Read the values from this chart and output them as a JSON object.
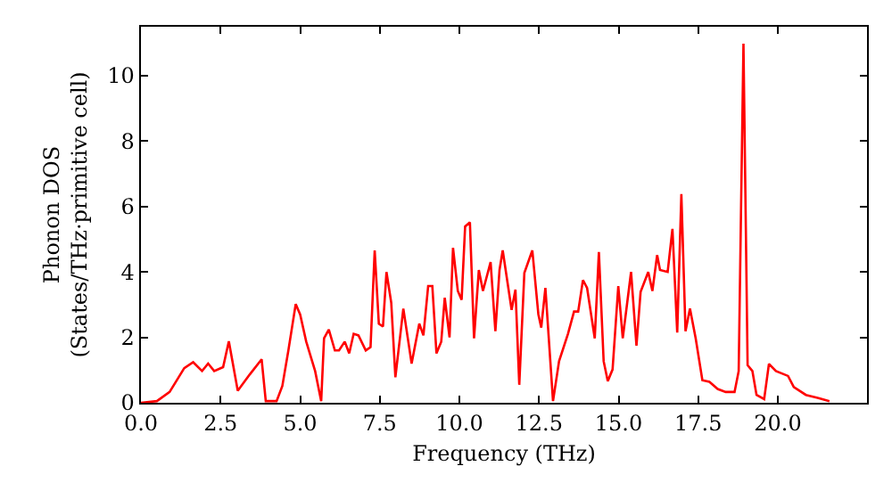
{
  "chart_data": {
    "type": "line",
    "xlabel": "Frequency (THz)",
    "ylabel": "Phonon DOS\n(States/THz·primitive cell)",
    "xlim": [
      0,
      22.8
    ],
    "ylim": [
      0,
      11.5
    ],
    "xticks": [
      {
        "value": 0,
        "label": "0.0"
      },
      {
        "value": 2.5,
        "label": "2.5"
      },
      {
        "value": 5,
        "label": "5.0"
      },
      {
        "value": 7.5,
        "label": "7.5"
      },
      {
        "value": 10,
        "label": "10.0"
      },
      {
        "value": 12.5,
        "label": "12.5"
      },
      {
        "value": 15,
        "label": "15.0"
      },
      {
        "value": 17.5,
        "label": "17.5"
      },
      {
        "value": 20,
        "label": "20.0"
      }
    ],
    "yticks": [
      0,
      2,
      4,
      6,
      8,
      10
    ],
    "grid": false,
    "marker": "none",
    "line_style": "solid",
    "series": [
      {
        "color": "#ff0000",
        "x": [
          0,
          0.5,
          0.9,
          1.36,
          1.64,
          1.92,
          2.11,
          2.3,
          2.58,
          2.76,
          3.04,
          3.42,
          3.79,
          3.92,
          4.26,
          4.44,
          4.63,
          4.86,
          5.0,
          5.19,
          5.47,
          5.66,
          5.75,
          5.9,
          6.09,
          6.22,
          6.4,
          6.54,
          6.68,
          6.83,
          7.06,
          7.21,
          7.34,
          7.47,
          7.6,
          7.71,
          7.86,
          7.99,
          8.24,
          8.5,
          8.74,
          8.87,
          9.02,
          9.15,
          9.28,
          9.43,
          9.54,
          9.69,
          9.8,
          9.95,
          10.07,
          10.18,
          10.33,
          10.46,
          10.61,
          10.74,
          10.98,
          11.13,
          11.26,
          11.36,
          11.64,
          11.76,
          11.88,
          12.04,
          12.29,
          12.48,
          12.57,
          12.7,
          12.94,
          13.13,
          13.41,
          13.6,
          13.73,
          13.88,
          14.01,
          14.25,
          14.38,
          14.53,
          14.66,
          14.81,
          14.99,
          15.13,
          15.39,
          15.56,
          15.69,
          15.93,
          16.06,
          16.21,
          16.3,
          16.54,
          16.69,
          16.84,
          16.97,
          17.1,
          17.24,
          17.42,
          17.63,
          17.85,
          18.11,
          18.36,
          18.64,
          18.77,
          18.92,
          19.05,
          19.2,
          19.33,
          19.57,
          19.72,
          19.94,
          20.32,
          20.5,
          20.88,
          21.25,
          21.62
        ],
        "values": [
          0,
          0.05,
          0.33,
          1.06,
          1.24,
          0.97,
          1.2,
          0.97,
          1.09,
          1.88,
          0.37,
          0.87,
          1.33,
          0.05,
          0.05,
          0.51,
          1.6,
          3.02,
          2.7,
          1.87,
          0.97,
          0.05,
          1.97,
          2.24,
          1.6,
          1.6,
          1.87,
          1.51,
          2.11,
          2.06,
          1.6,
          1.7,
          4.66,
          2.42,
          2.33,
          4.0,
          3.06,
          0.78,
          2.88,
          1.2,
          2.42,
          2.06,
          3.57,
          3.57,
          1.51,
          1.87,
          3.21,
          2.0,
          4.74,
          3.42,
          3.15,
          5.39,
          5.52,
          1.97,
          4.06,
          3.42,
          4.3,
          2.19,
          4.06,
          4.66,
          2.84,
          3.46,
          0.55,
          3.97,
          4.66,
          2.7,
          2.3,
          3.51,
          0.05,
          1.27,
          2.11,
          2.79,
          2.79,
          3.75,
          3.51,
          1.97,
          4.61,
          1.27,
          0.66,
          1.02,
          3.57,
          1.97,
          4.0,
          1.75,
          3.39,
          4.0,
          3.42,
          4.52,
          4.06,
          4.0,
          5.32,
          2.15,
          6.38,
          2.19,
          2.88,
          1.97,
          0.69,
          0.64,
          0.42,
          0.33,
          0.33,
          0.97,
          10.98,
          1.15,
          0.97,
          0.24,
          0.11,
          1.19,
          0.97,
          0.82,
          0.48,
          0.24,
          0.15,
          0.05
        ]
      }
    ]
  }
}
